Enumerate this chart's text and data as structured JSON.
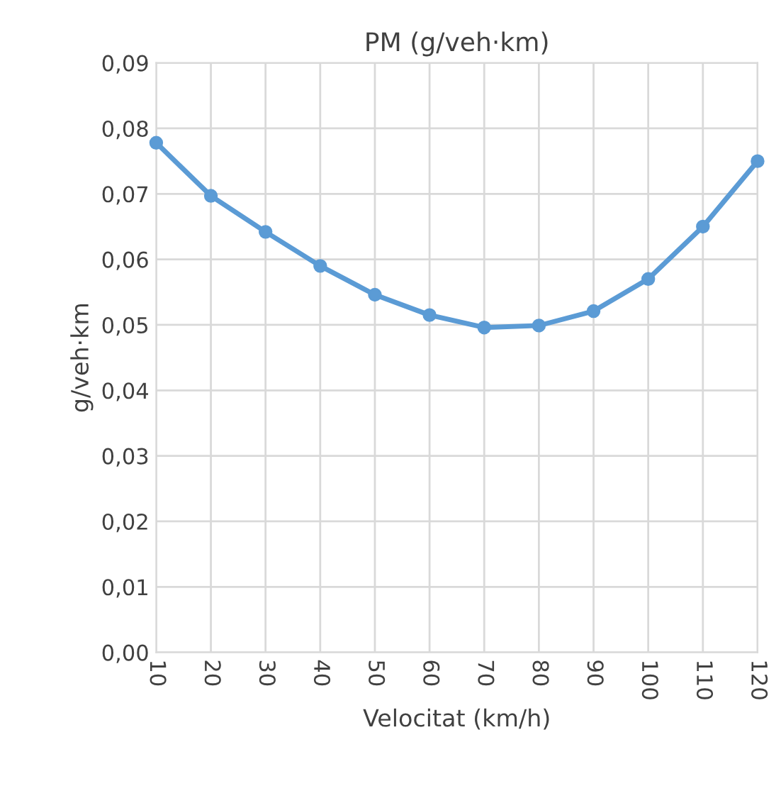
{
  "chart_data": {
    "type": "line",
    "title": "PM (g/veh·km)",
    "xlabel": "Velocitat (km/h)",
    "ylabel": "g/veh·km",
    "categories": [
      "10",
      "20",
      "30",
      "40",
      "50",
      "60",
      "70",
      "80",
      "90",
      "100",
      "110",
      "120"
    ],
    "series": [
      {
        "color": "#5b9bd5",
        "values": [
          0.0778,
          0.0697,
          0.0642,
          0.059,
          0.0546,
          0.0515,
          0.0496,
          0.0499,
          0.0521,
          0.057,
          0.065,
          0.075
        ]
      }
    ],
    "ylim": [
      0,
      0.09
    ],
    "yticks": [
      {
        "value": 0,
        "label": "0,00"
      },
      {
        "value": 0.01,
        "label": "0,01"
      },
      {
        "value": 0.02,
        "label": "0,02"
      },
      {
        "value": 0.03,
        "label": "0,03"
      },
      {
        "value": 0.04,
        "label": "0,04"
      },
      {
        "value": 0.05,
        "label": "0,05"
      },
      {
        "value": 0.06,
        "label": "0,06"
      },
      {
        "value": 0.07,
        "label": "0,07"
      },
      {
        "value": 0.08,
        "label": "0,08"
      },
      {
        "value": 0.09,
        "label": "0,09"
      }
    ],
    "grid": true,
    "marker": "circle",
    "line_style": "solid"
  }
}
